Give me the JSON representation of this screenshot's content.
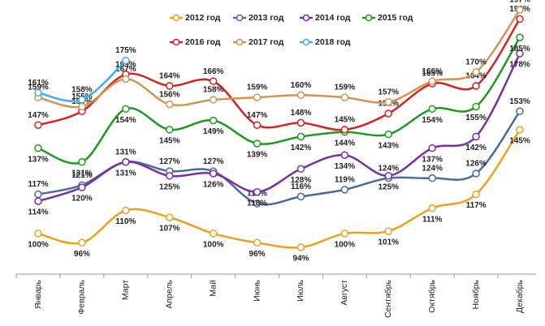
{
  "chart_data": {
    "type": "line",
    "categories": [
      "Январь",
      "Февраль",
      "Март",
      "Апрель",
      "Май",
      "Июнь",
      "Июль",
      "Август",
      "Сентябрь",
      "Октябрь",
      "Ноябрь",
      "Декабрь"
    ],
    "series": [
      {
        "name": "2012 год",
        "color": "#e8a21e",
        "values": [
          100,
          96,
          110,
          107,
          100,
          96,
          94,
          100,
          101,
          111,
          117,
          145
        ],
        "value_labels": [
          "100%",
          "96%",
          "110%",
          "107%",
          "100%",
          "96%",
          "94%",
          "100%",
          "101%",
          "111%",
          "117%",
          "145%"
        ]
      },
      {
        "name": "2013 год",
        "color": "#4a6b9c",
        "values": [
          117,
          121,
          131,
          127,
          127,
          113,
          116,
          119,
          124,
          124,
          126,
          153
        ],
        "value_labels": [
          "117%",
          "121%",
          "131%",
          "127%",
          "127%",
          "113%",
          "116%",
          "119%",
          "124%",
          "124%",
          "126%",
          "153%"
        ]
      },
      {
        "name": "2014 год",
        "color": "#7a2fa0",
        "values": [
          114,
          120,
          131,
          125,
          126,
          118,
          128,
          134,
          125,
          137,
          142,
          178
        ],
        "value_labels": [
          "114%",
          "120%",
          "131%",
          "125%",
          "126%",
          "118%",
          "128%",
          "134%",
          "125%",
          "137%",
          "142%",
          "178%"
        ]
      },
      {
        "name": "2015 год",
        "color": "#1e9a1e",
        "values": [
          137,
          131,
          154,
          145,
          149,
          139,
          142,
          144,
          143,
          154,
          155,
          185
        ],
        "value_labels": [
          "137%",
          "131%",
          "154%",
          "145%",
          "149%",
          "139%",
          "142%",
          "144%",
          "143%",
          "154%",
          "155%",
          "185%"
        ]
      },
      {
        "name": "2016 год",
        "color": "#d62222",
        "values": [
          147,
          153,
          169,
          164,
          166,
          147,
          148,
          145,
          152,
          165,
          164,
          193
        ],
        "value_labels": [
          "147%",
          "153%",
          "169%",
          "164%",
          "166%",
          "147%",
          "148%",
          "145%",
          "152%",
          "165%",
          "164%",
          "193%"
        ]
      },
      {
        "name": "2017 год",
        "color": "#d09455",
        "values": [
          159,
          155,
          167,
          156,
          158,
          159,
          160,
          159,
          157,
          166,
          170,
          197
        ],
        "value_labels": [
          "159%",
          "155%",
          "167%",
          "156%",
          "158%",
          "159%",
          "160%",
          "159%",
          "157%",
          "166%",
          "170%",
          "197%"
        ]
      },
      {
        "name": "2018 год",
        "color": "#3fb1e3",
        "values": [
          161,
          158,
          175,
          null,
          null,
          null,
          null,
          null,
          null,
          null,
          null,
          null
        ],
        "value_labels": [
          "161%",
          "158%",
          "175%",
          null,
          null,
          null,
          null,
          null,
          null,
          null,
          null,
          null
        ]
      }
    ]
  }
}
